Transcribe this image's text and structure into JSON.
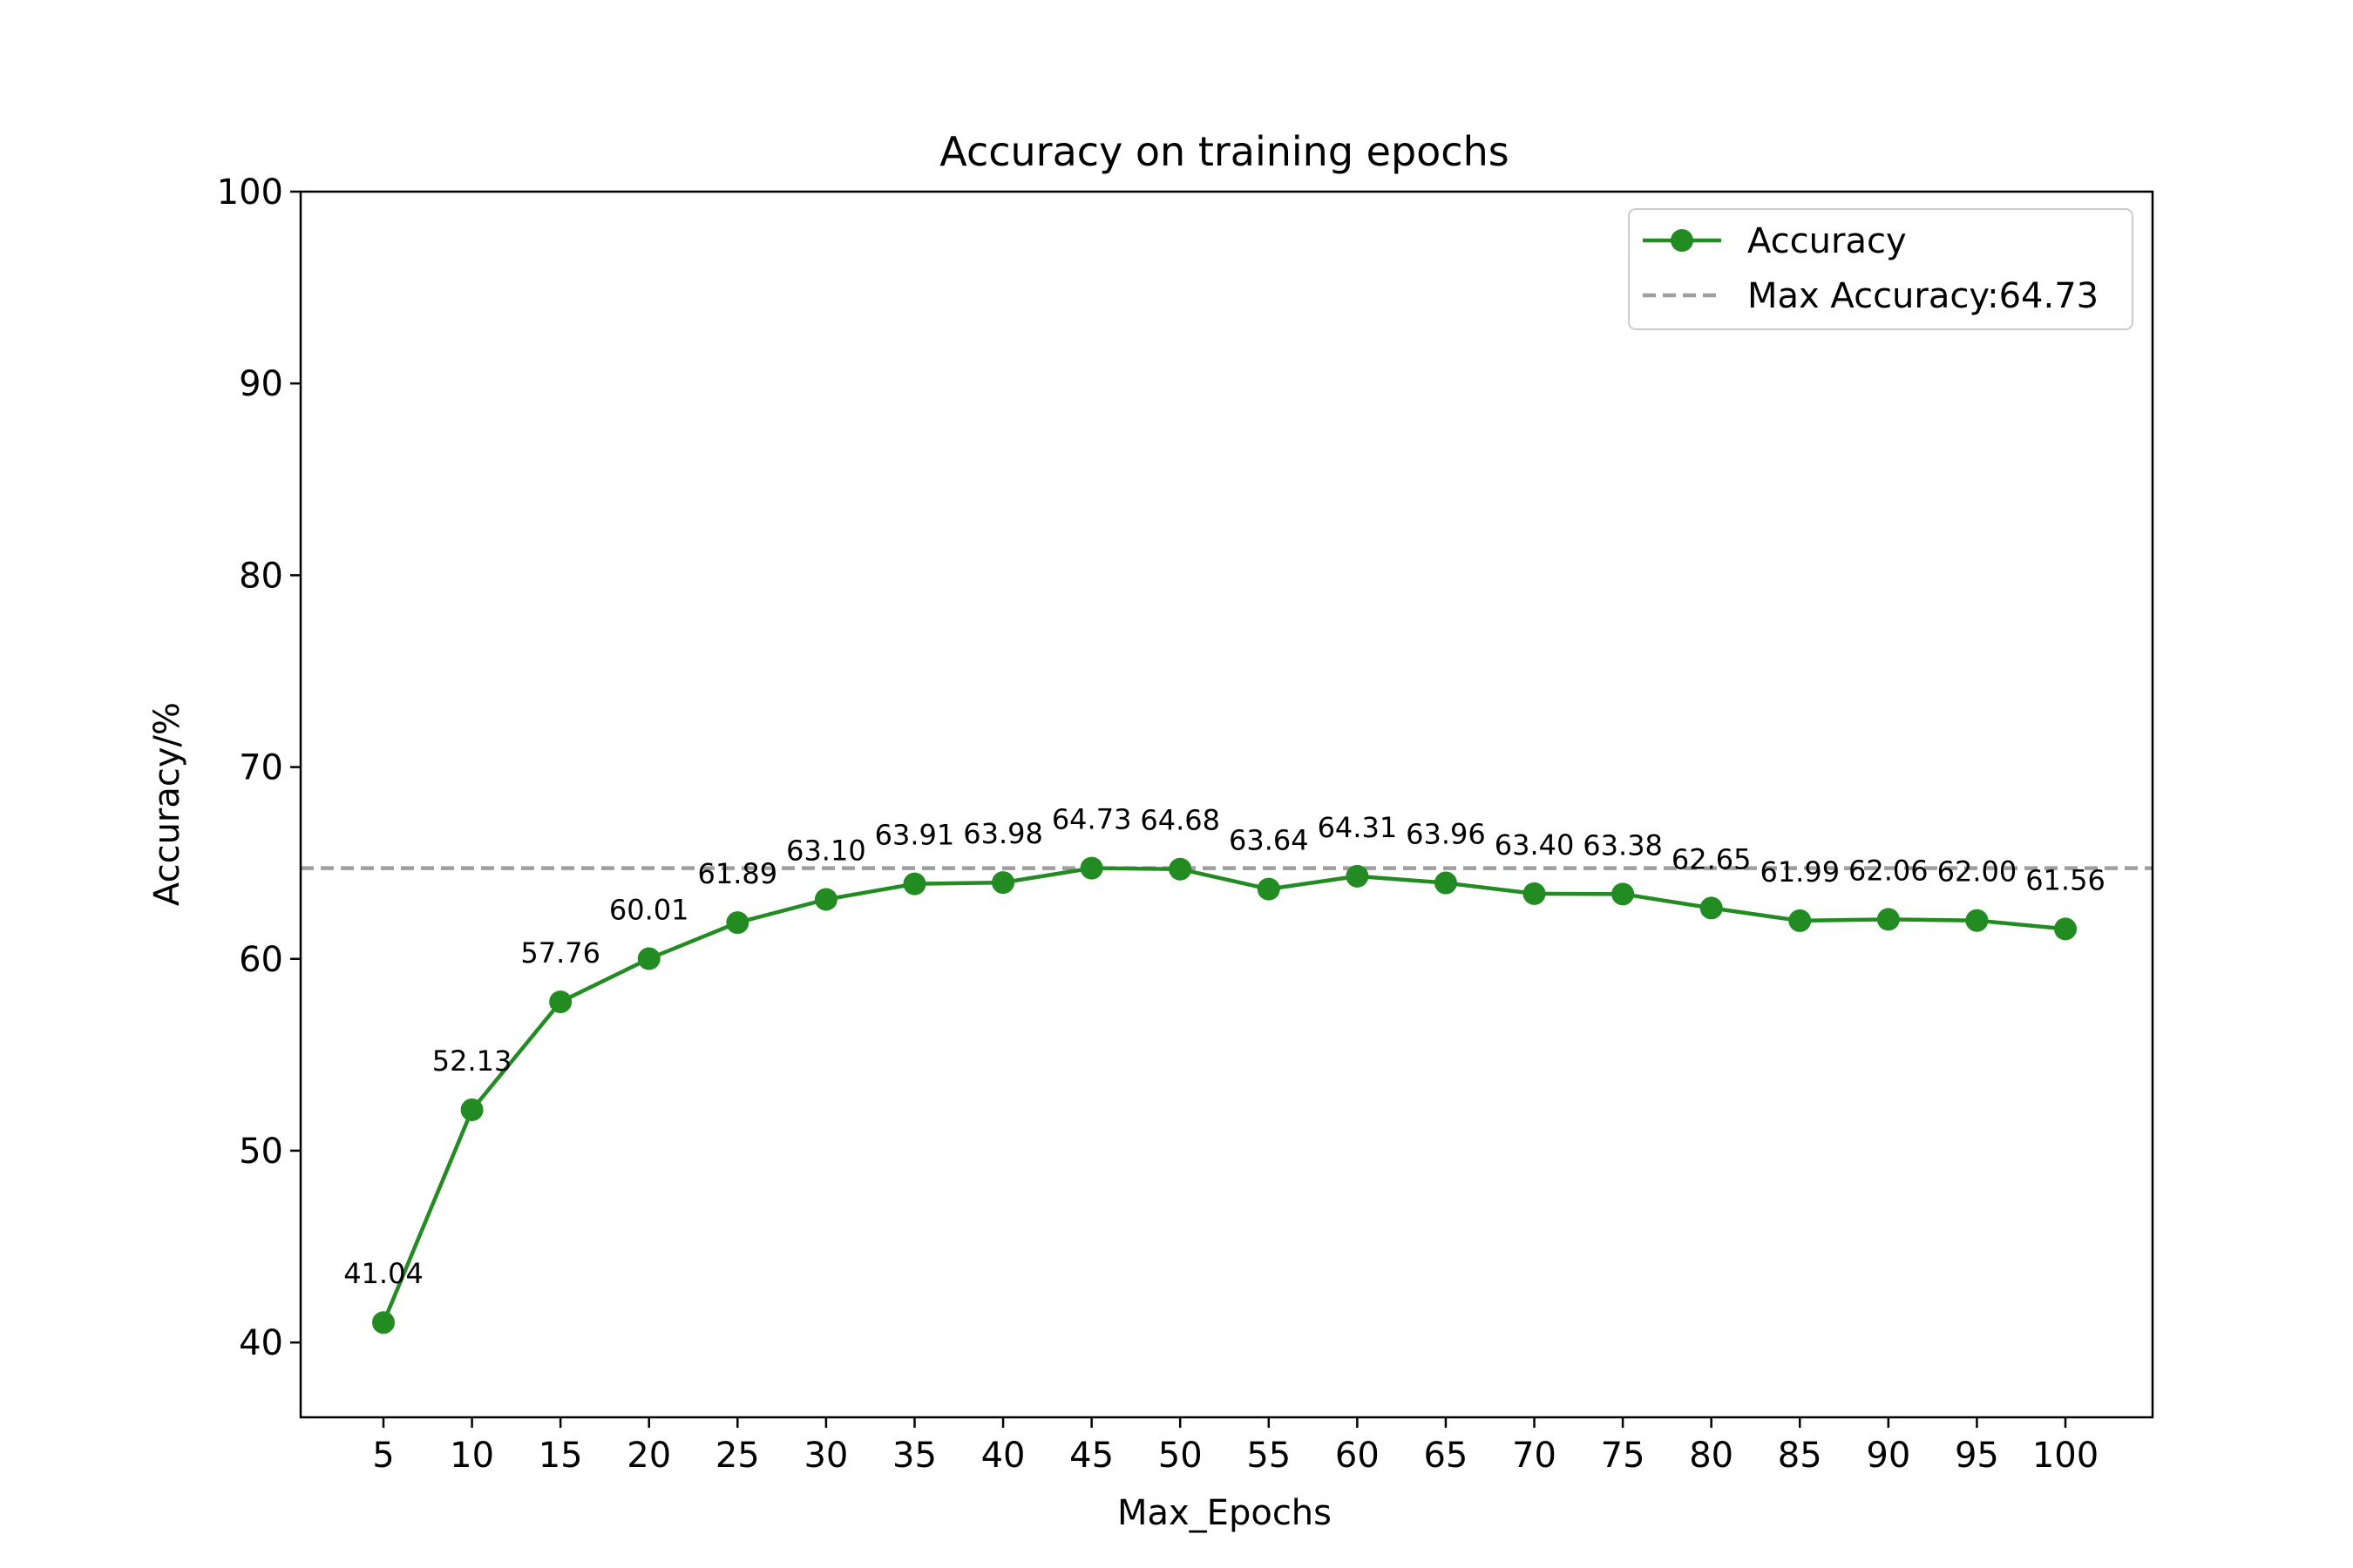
{
  "chart_data": {
    "type": "line",
    "title": "Accuracy on training epochs",
    "xlabel": "Max_Epochs",
    "ylabel": "Accuracy/%",
    "categories": [
      "5",
      "10",
      "15",
      "20",
      "25",
      "30",
      "35",
      "40",
      "45",
      "50",
      "55",
      "60",
      "65",
      "70",
      "75",
      "80",
      "85",
      "90",
      "95",
      "100"
    ],
    "ylim": [
      36.1,
      100
    ],
    "yticks": [
      40,
      50,
      60,
      70,
      80,
      90,
      100
    ],
    "grid": false,
    "legend_position": "top-right",
    "series": [
      {
        "name": "Accuracy",
        "color": "#228B22",
        "marker": "circle",
        "values": [
          41.04,
          52.13,
          57.76,
          60.01,
          61.89,
          63.1,
          63.91,
          63.98,
          64.73,
          64.68,
          63.64,
          64.31,
          63.96,
          63.4,
          63.38,
          62.65,
          61.99,
          62.06,
          62.0,
          61.56
        ],
        "labels": [
          "41.04",
          "52.13",
          "57.76",
          "60.01",
          "61.89",
          "63.10",
          "63.91",
          "63.98",
          "64.73",
          "64.68",
          "63.64",
          "64.31",
          "63.96",
          "63.40",
          "63.38",
          "62.65",
          "61.99",
          "62.06",
          "62.00",
          "61.56"
        ]
      }
    ],
    "reference_line": {
      "name": "Max Accuracy:64.73",
      "value": 64.73,
      "color": "#9e9e9e",
      "style": "dashed"
    }
  }
}
